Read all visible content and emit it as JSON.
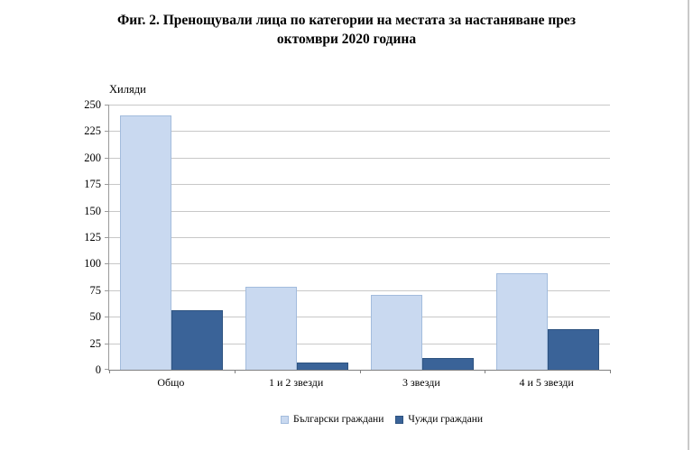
{
  "chart_data": {
    "type": "bar",
    "title": "Фиг. 2. Пренощували лица по категории на местата за настаняване през октомври 2020 година",
    "title_lines": [
      "Фиг. 2. Пренощували лица по категории на местата за настаняване през",
      "октомври 2020 година"
    ],
    "unit_label": "Хиляди",
    "xlabel": "",
    "ylabel": "Хиляди",
    "categories": [
      "Общо",
      "1 и 2 звезди",
      "3 звезди",
      "4 и 5 звезди"
    ],
    "series": [
      {
        "name": "Български граждани",
        "color": "#C9D9F0",
        "border_color": "#A3BCDD",
        "values": [
          240,
          78,
          71,
          91
        ]
      },
      {
        "name": "Чужди граждани",
        "color": "#3A6398",
        "border_color": "#2E5380",
        "values": [
          56,
          7,
          11,
          38
        ]
      }
    ],
    "ylim": [
      0,
      250
    ],
    "ytick_step": 25,
    "yticks": [
      0,
      25,
      50,
      75,
      100,
      125,
      150,
      175,
      200,
      225,
      250
    ],
    "grid": true,
    "gridline_color": "#c8c8c8",
    "legend_position": "bottom"
  }
}
